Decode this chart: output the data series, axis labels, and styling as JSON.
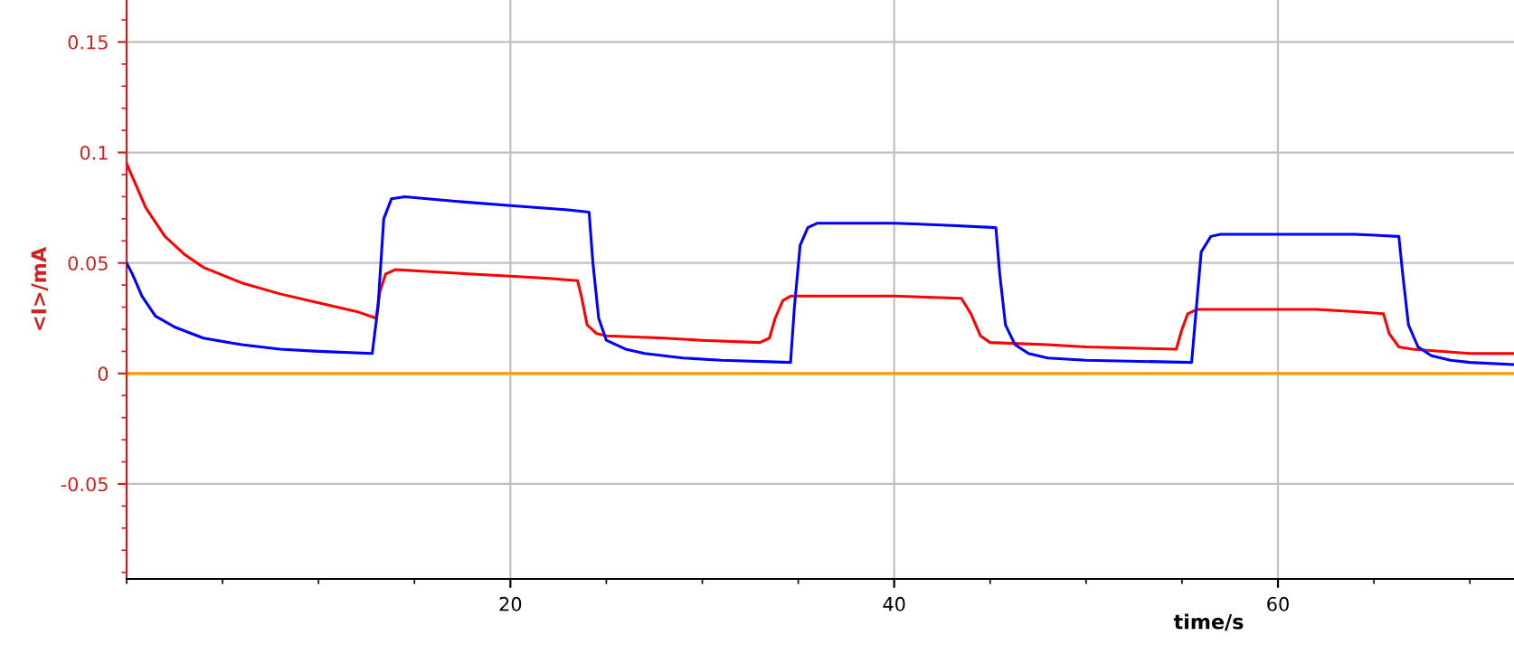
{
  "chart_data": {
    "type": "line",
    "xlabel": "time/s",
    "ylabel": "<I>/mA",
    "xlim": [
      0,
      72.3
    ],
    "ylim": [
      -0.093,
      0.169
    ],
    "xticks": [
      20,
      40,
      60
    ],
    "yticks": [
      -0.05,
      0,
      0.05,
      0.1,
      0.15
    ],
    "grid": true,
    "line_style": "solid",
    "marker": "none",
    "series": [
      {
        "color": "#ff0000",
        "x": [
          0,
          0.5,
          1,
          2,
          3,
          4,
          6,
          8,
          10,
          12,
          13,
          13.2,
          13.5,
          14,
          16,
          18,
          20,
          22,
          23.5,
          23.7,
          24,
          24.5,
          25,
          28,
          30,
          33,
          33.5,
          33.8,
          34.2,
          34.6,
          36,
          40,
          43.5,
          44,
          44.5,
          45,
          48,
          50,
          54.7,
          55,
          55.3,
          55.8,
          58,
          62,
          64,
          65.5,
          65.8,
          66.3,
          67,
          70,
          72.3
        ],
        "values": [
          0.095,
          0.085,
          0.075,
          0.062,
          0.054,
          0.048,
          0.041,
          0.036,
          0.032,
          0.028,
          0.025,
          0.037,
          0.045,
          0.047,
          0.046,
          0.045,
          0.044,
          0.043,
          0.042,
          0.035,
          0.022,
          0.018,
          0.017,
          0.016,
          0.015,
          0.014,
          0.016,
          0.025,
          0.033,
          0.035,
          0.035,
          0.035,
          0.034,
          0.027,
          0.017,
          0.014,
          0.013,
          0.012,
          0.011,
          0.02,
          0.027,
          0.029,
          0.029,
          0.029,
          0.028,
          0.027,
          0.018,
          0.012,
          0.011,
          0.009,
          0.009
        ]
      },
      {
        "color": "#0000ff",
        "x": [
          0,
          0.3,
          0.8,
          1.5,
          2.5,
          4,
          6,
          8,
          10,
          12.8,
          13.1,
          13.4,
          13.8,
          14.5,
          17,
          20,
          23,
          24.1,
          24.3,
          24.6,
          25,
          26,
          27,
          29,
          31,
          34.6,
          34.8,
          35.1,
          35.5,
          36,
          40,
          43,
          45.3,
          45.5,
          45.8,
          46.3,
          47,
          48,
          50,
          55.5,
          55.7,
          56,
          56.5,
          57,
          60,
          64,
          66.3,
          66.5,
          66.8,
          67.3,
          68,
          69,
          70,
          72.3
        ],
        "values": [
          0.05,
          0.045,
          0.035,
          0.026,
          0.021,
          0.016,
          0.013,
          0.011,
          0.01,
          0.009,
          0.03,
          0.07,
          0.079,
          0.08,
          0.078,
          0.076,
          0.074,
          0.073,
          0.05,
          0.025,
          0.015,
          0.011,
          0.009,
          0.007,
          0.006,
          0.005,
          0.03,
          0.058,
          0.066,
          0.068,
          0.068,
          0.067,
          0.066,
          0.045,
          0.022,
          0.013,
          0.009,
          0.007,
          0.006,
          0.005,
          0.025,
          0.055,
          0.062,
          0.063,
          0.063,
          0.063,
          0.062,
          0.045,
          0.022,
          0.012,
          0.008,
          0.006,
          0.005,
          0.004
        ]
      }
    ],
    "ref_lines": [
      {
        "axis": "y",
        "value": 0,
        "color": "#ff9900"
      }
    ]
  }
}
